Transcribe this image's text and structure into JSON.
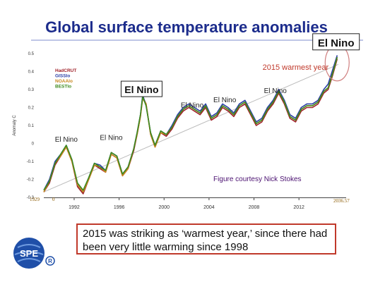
{
  "title": "Global surface temperature anomalies",
  "caption": "2015 was striking as ‘warmest year,’ since there had been very little warming since 1998",
  "logo_text": "SPE",
  "chart_data": {
    "type": "line",
    "ylabel": "Anomaly C",
    "xlabel": "",
    "xlim": [
      1989.3,
      2016.2
    ],
    "ylim": [
      -0.3,
      0.5
    ],
    "x_ticks": [
      1992,
      1996,
      2000,
      2004,
      2008,
      2012
    ],
    "x_tick_labels": [
      "1992",
      "1996",
      "2000",
      "2004",
      "2008",
      "2012"
    ],
    "y_ticks": [
      -0.3,
      -0.2,
      -0.1,
      0,
      0.1,
      0.2,
      0.3,
      0.4,
      0.5
    ],
    "y_tick_labels": [
      "-0.3",
      "-0.2",
      "-0.1",
      "0",
      "0.1",
      "0.2",
      "0.3",
      "0.4",
      "0.5"
    ],
    "legend": [
      "HadCRUT",
      "GISSlo",
      "NOAAlo",
      "BESTlo"
    ],
    "legend_position": "top-left",
    "corner_labels": {
      "left": "1929",
      "left_value": "0",
      "right": "2036.57"
    },
    "annotations": [
      {
        "text": "El Nino",
        "x": 1991.3,
        "y": 0.01,
        "boxed": false
      },
      {
        "text": "El Nino",
        "x": 1995.3,
        "y": 0.02,
        "boxed": false
      },
      {
        "text": "El Nino",
        "x": 1998.0,
        "y": 0.28,
        "boxed": true
      },
      {
        "text": "El Nino",
        "x": 2002.5,
        "y": 0.2,
        "boxed": false
      },
      {
        "text": "El Nino",
        "x": 2005.4,
        "y": 0.23,
        "boxed": false
      },
      {
        "text": "El Nino",
        "x": 2009.9,
        "y": 0.28,
        "boxed": false
      },
      {
        "text": "El Nino",
        "x": 2015.3,
        "y": 0.54,
        "boxed": true
      },
      {
        "text": "2015 warmest year",
        "x": 2011.7,
        "y": 0.41,
        "boxed": false,
        "color": "#c0392b"
      },
      {
        "text": "Figure courtesy Nick Stokes",
        "x": 2008.3,
        "y": -0.21,
        "boxed": false,
        "color": "#4a1070"
      }
    ],
    "trend_line": {
      "x": [
        1989.3,
        2015.5
      ],
      "y": [
        -0.27,
        0.44
      ]
    },
    "highlight_circle": {
      "x": 2015.4,
      "y": 0.45
    },
    "series_x": [
      1989.3,
      1989.8,
      1990.3,
      1990.8,
      1991.3,
      1991.8,
      1992.3,
      1992.8,
      1993.3,
      1993.8,
      1994.3,
      1994.8,
      1995.3,
      1995.8,
      1996.3,
      1996.8,
      1997.3,
      1997.6,
      1997.9,
      1998.1,
      1998.4,
      1998.8,
      1999.2,
      1999.7,
      2000.2,
      2000.7,
      2001.2,
      2001.7,
      2002.2,
      2002.7,
      2003.2,
      2003.7,
      2004.2,
      2004.7,
      2005.2,
      2005.7,
      2006.2,
      2006.7,
      2007.2,
      2007.7,
      2008.2,
      2008.7,
      2009.2,
      2009.7,
      2010.2,
      2010.7,
      2011.2,
      2011.7,
      2012.2,
      2012.7,
      2013.2,
      2013.7,
      2014.2,
      2014.6,
      2015.0,
      2015.4
    ],
    "series": [
      {
        "name": "HadCRUT",
        "color": "#a0222a",
        "values": [
          -0.27,
          -0.22,
          -0.12,
          -0.07,
          -0.02,
          -0.1,
          -0.24,
          -0.28,
          -0.2,
          -0.12,
          -0.14,
          -0.16,
          -0.06,
          -0.08,
          -0.18,
          -0.14,
          -0.04,
          0.05,
          0.15,
          0.26,
          0.22,
          0.05,
          -0.02,
          0.06,
          0.04,
          0.08,
          0.14,
          0.18,
          0.2,
          0.18,
          0.16,
          0.2,
          0.13,
          0.15,
          0.2,
          0.18,
          0.15,
          0.2,
          0.22,
          0.16,
          0.1,
          0.12,
          0.18,
          0.22,
          0.28,
          0.22,
          0.14,
          0.12,
          0.18,
          0.2,
          0.2,
          0.22,
          0.28,
          0.3,
          0.38,
          0.47
        ]
      },
      {
        "name": "GISSlo",
        "color": "#2a3fa6",
        "values": [
          -0.26,
          -0.2,
          -0.1,
          -0.06,
          -0.01,
          -0.09,
          -0.23,
          -0.27,
          -0.19,
          -0.11,
          -0.12,
          -0.15,
          -0.05,
          -0.07,
          -0.17,
          -0.13,
          -0.03,
          0.06,
          0.16,
          0.27,
          0.21,
          0.06,
          -0.01,
          0.07,
          0.05,
          0.1,
          0.16,
          0.2,
          0.22,
          0.2,
          0.18,
          0.22,
          0.15,
          0.17,
          0.22,
          0.2,
          0.17,
          0.22,
          0.24,
          0.18,
          0.12,
          0.14,
          0.2,
          0.24,
          0.3,
          0.24,
          0.16,
          0.14,
          0.2,
          0.22,
          0.22,
          0.24,
          0.3,
          0.33,
          0.41,
          0.49
        ]
      },
      {
        "name": "NOAAlo",
        "color": "#c9871e",
        "values": [
          -0.27,
          -0.21,
          -0.11,
          -0.07,
          -0.02,
          -0.1,
          -0.23,
          -0.27,
          -0.2,
          -0.12,
          -0.13,
          -0.16,
          -0.06,
          -0.08,
          -0.18,
          -0.14,
          -0.03,
          0.05,
          0.15,
          0.25,
          0.22,
          0.05,
          -0.02,
          0.06,
          0.05,
          0.09,
          0.15,
          0.19,
          0.21,
          0.19,
          0.17,
          0.21,
          0.14,
          0.16,
          0.21,
          0.19,
          0.16,
          0.21,
          0.23,
          0.17,
          0.11,
          0.13,
          0.19,
          0.23,
          0.29,
          0.23,
          0.15,
          0.13,
          0.19,
          0.21,
          0.21,
          0.23,
          0.29,
          0.31,
          0.39,
          0.48
        ]
      },
      {
        "name": "BESTlo",
        "color": "#3e8a1e",
        "values": [
          -0.26,
          -0.21,
          -0.11,
          -0.06,
          -0.01,
          -0.09,
          -0.22,
          -0.26,
          -0.19,
          -0.11,
          -0.13,
          -0.15,
          -0.05,
          -0.07,
          -0.17,
          -0.13,
          -0.03,
          0.06,
          0.16,
          0.26,
          0.21,
          0.06,
          -0.01,
          0.07,
          0.05,
          0.09,
          0.15,
          0.19,
          0.21,
          0.19,
          0.17,
          0.21,
          0.14,
          0.16,
          0.21,
          0.19,
          0.16,
          0.21,
          0.23,
          0.17,
          0.11,
          0.13,
          0.19,
          0.23,
          0.29,
          0.23,
          0.15,
          0.13,
          0.19,
          0.21,
          0.21,
          0.23,
          0.29,
          0.31,
          0.39,
          0.48
        ]
      }
    ]
  }
}
